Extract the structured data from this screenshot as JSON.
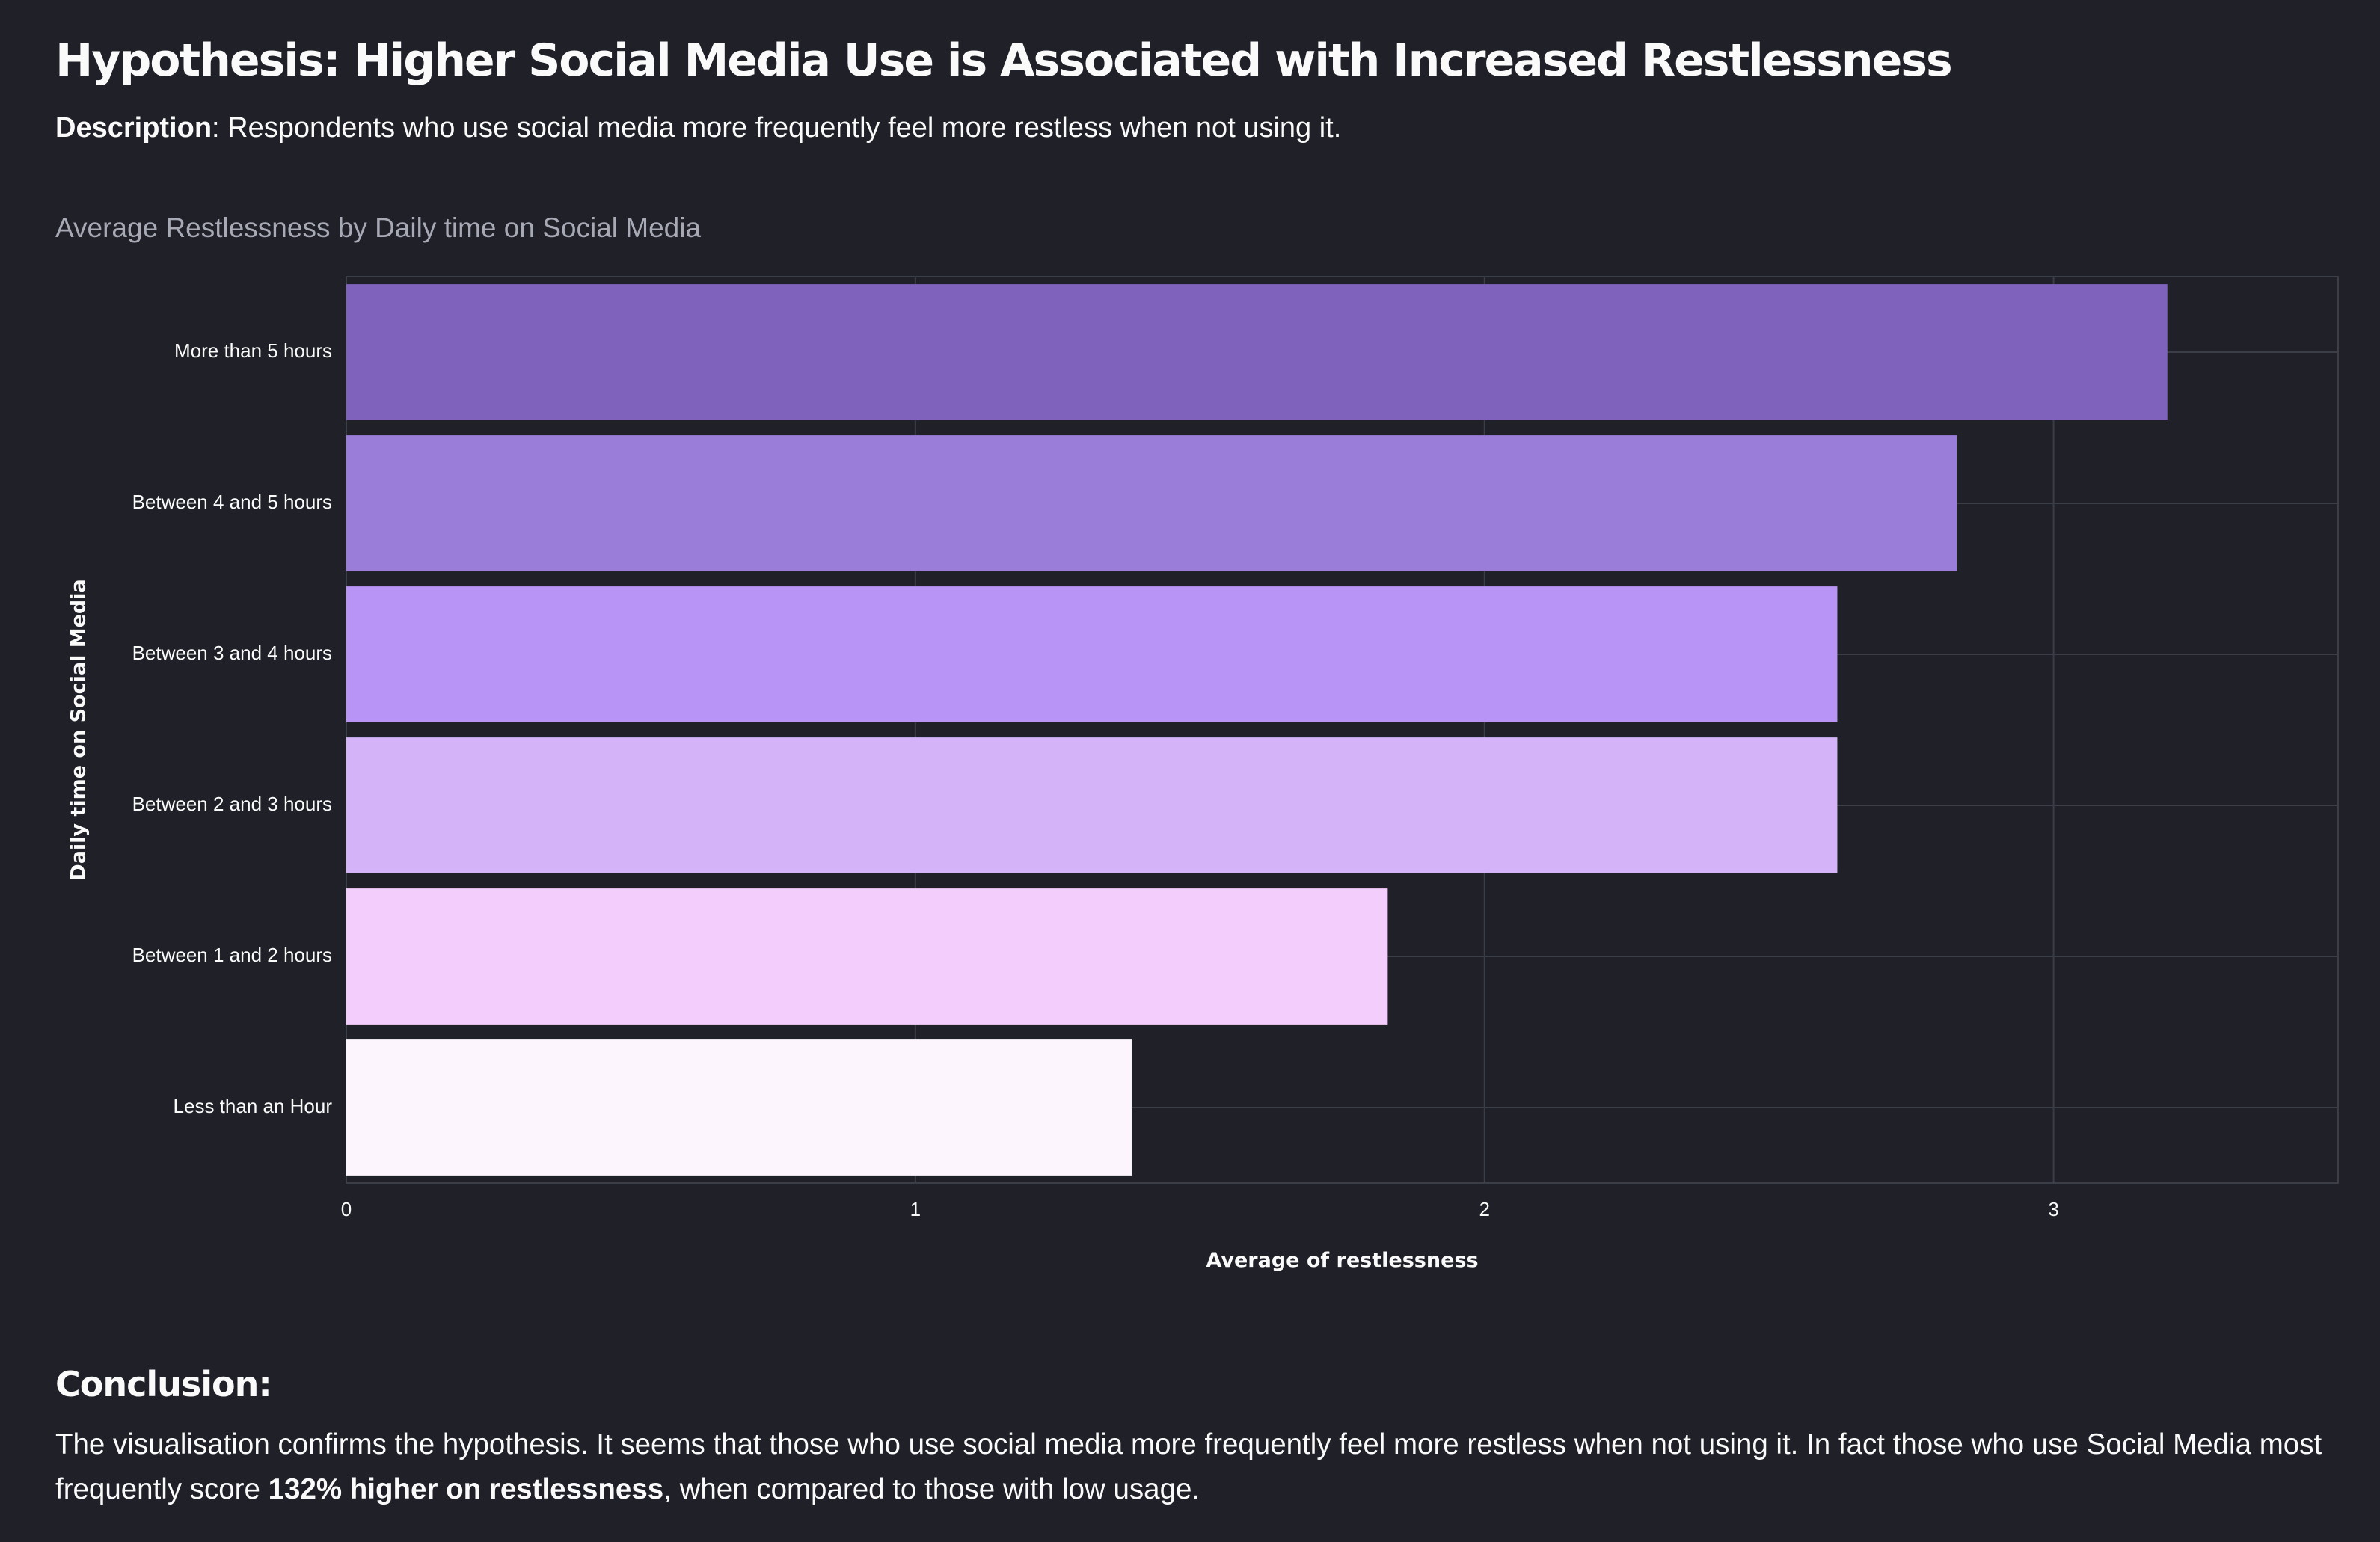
{
  "page": {
    "title": "Hypothesis: Higher Social Media Use is Associated with Increased Restlessness",
    "description_label": "Description",
    "description_text": ": Respondents who use social media more frequently feel more restless when not using it.",
    "chart_title": "Average Restlessness by Daily time on Social Media",
    "conclusion_heading": "Conclusion:",
    "conclusion_part1": "The visualisation confirms the hypothesis. It seems that those who use social media more frequently feel more restless when not using it. In fact those who use Social Media most frequently score ",
    "conclusion_bold": "132% higher on restlessness",
    "conclusion_part2": ", when compared to those with low usage."
  },
  "chart_data": {
    "type": "bar",
    "orientation": "horizontal",
    "title": "Average Restlessness by Daily time on Social Media",
    "xlabel": "Average of restlessness",
    "ylabel": "Daily time on Social Media",
    "xlim": [
      0,
      3.5
    ],
    "xticks": [
      0,
      1,
      2,
      3
    ],
    "grid": true,
    "categories": [
      "More than 5 hours",
      "Between 4 and 5 hours",
      "Between 3 and 4 hours",
      "Between 2 and 3 hours",
      "Between 1 and 2 hours",
      "Less than an Hour"
    ],
    "values": [
      3.2,
      2.83,
      2.62,
      2.62,
      1.83,
      1.38
    ],
    "colors": [
      "#7f62bb",
      "#9a7cd9",
      "#b794f6",
      "#d4b3f9",
      "#f3cdfb",
      "#fcf5fd"
    ]
  },
  "theme": {
    "background": "#1f2028",
    "grid_color": "#3b3d47",
    "text_color": "#fafafa"
  }
}
